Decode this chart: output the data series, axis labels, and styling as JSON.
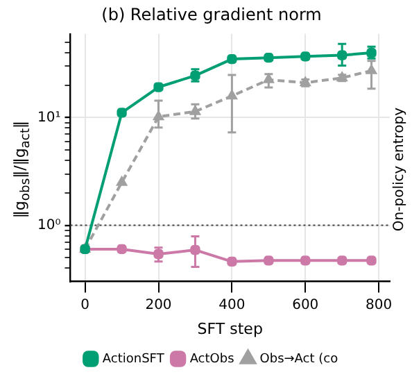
{
  "chart_data": {
    "type": "line",
    "title": "(b) Relative gradient norm",
    "xlabel": "SFT step",
    "ylabel": "‖g$_{obs}$‖/‖g$_{act}$‖",
    "annotations": [
      "On-policy entropy"
    ],
    "x": [
      0,
      100,
      200,
      300,
      400,
      500,
      600,
      700,
      780
    ],
    "series": [
      {
        "name": "ActionSFT",
        "color": "#009e73",
        "marker": "square",
        "line_style": "solid",
        "values": [
          0.6,
          11.1,
          19.2,
          24.6,
          35,
          36,
          37,
          38,
          40
        ],
        "errors": [
          null,
          null,
          null,
          [
            21.7,
            28.2
          ],
          null,
          null,
          null,
          [
            30.4,
            48.4
          ],
          [
            35.5,
            45.6
          ]
        ]
      },
      {
        "name": "ActObs",
        "color": "#cc79a7",
        "marker": "square",
        "line_style": "solid",
        "values": [
          0.6,
          0.6,
          0.54,
          0.59,
          0.46,
          0.47,
          0.47,
          0.47,
          0.47
        ],
        "errors": [
          null,
          null,
          [
            0.46,
            0.62
          ],
          [
            0.41,
            0.79
          ],
          null,
          null,
          null,
          null,
          null
        ]
      },
      {
        "name": "Obs→Act (co",
        "color": "#a0a0a0",
        "marker": "triangle",
        "line_style": "dashed",
        "values": [
          0.6,
          2.5,
          10.2,
          11.4,
          15.9,
          22.5,
          21.1,
          23.4,
          27.3
        ],
        "errors": [
          null,
          null,
          [
            8.1,
            14.4
          ],
          [
            9.8,
            13.3
          ],
          [
            7.3,
            24.9
          ],
          [
            19.1,
            25.4
          ],
          [
            19.6,
            22.6
          ],
          [
            21.9,
            25
          ],
          [
            18.6,
            33.6
          ]
        ]
      }
    ],
    "log": "y",
    "xlim": [
      -40,
      830
    ],
    "ylim": [
      0.33,
      60
    ],
    "xticks": [
      0,
      200,
      400,
      600,
      800
    ],
    "yticks": [
      {
        "value": 0.4,
        "label": null
      },
      {
        "value": 0.5,
        "label": null
      },
      {
        "value": 0.6,
        "label": null
      },
      {
        "value": 0.7,
        "label": null
      },
      {
        "value": 0.8,
        "label": null
      },
      {
        "value": 0.9,
        "label": null
      },
      {
        "value": 1,
        "label": "10⁰"
      },
      {
        "value": 2,
        "label": null
      },
      {
        "value": 3,
        "label": null
      },
      {
        "value": 4,
        "label": null
      },
      {
        "value": 5,
        "label": null
      },
      {
        "value": 6,
        "label": null
      },
      {
        "value": 7,
        "label": null
      },
      {
        "value": 8,
        "label": null
      },
      {
        "value": 9,
        "label": null
      },
      {
        "value": 10,
        "label": "10¹"
      },
      {
        "value": 20,
        "label": null
      },
      {
        "value": 30,
        "label": null
      },
      {
        "value": 40,
        "label": null
      },
      {
        "value": 50,
        "label": null
      }
    ],
    "ref_lines": [
      {
        "axis": "y",
        "value": 1,
        "color": "#444444",
        "line_style": "dotted"
      }
    ],
    "grid": true,
    "legend": "bottom"
  }
}
